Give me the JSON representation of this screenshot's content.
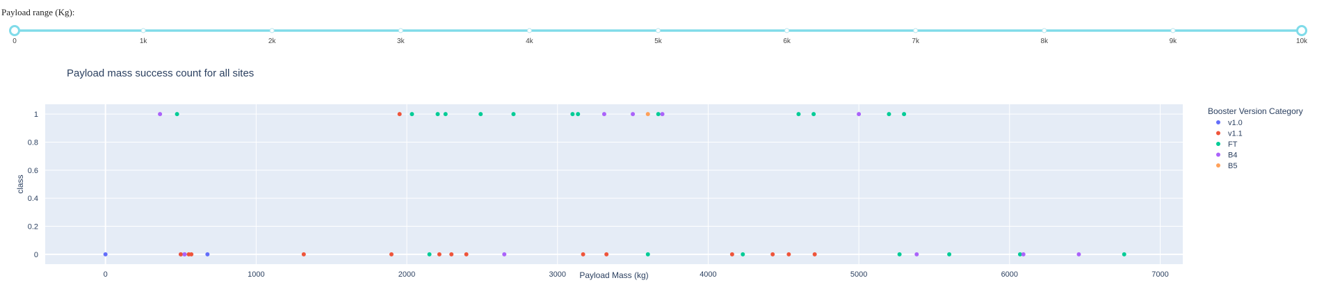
{
  "slider": {
    "label": "Payload range (Kg):",
    "marks": [
      "0",
      "1k",
      "2k",
      "3k",
      "4k",
      "5k",
      "6k",
      "7k",
      "8k",
      "9k",
      "10k"
    ],
    "min": 0,
    "max": 10000,
    "range": [
      0,
      10000
    ],
    "track_color": "#7fdbe9"
  },
  "chart_data": {
    "type": "scatter",
    "title": "Payload mass success count for all sites",
    "xlabel": "Payload Mass (kg)",
    "ylabel": "class",
    "xlim": [
      -400,
      7150
    ],
    "ylim": [
      -0.07,
      1.07
    ],
    "xticks": [
      0,
      1000,
      2000,
      3000,
      4000,
      5000,
      6000,
      7000
    ],
    "yticks": [
      0,
      0.2,
      0.4,
      0.6,
      0.8,
      1
    ],
    "legend_title": "Booster Version Category",
    "legend_position": "right",
    "grid": true,
    "series": [
      {
        "name": "v1.0",
        "color": "#636efa",
        "points": [
          [
            0,
            0
          ],
          [
            500,
            0
          ],
          [
            525,
            0
          ],
          [
            677,
            0
          ]
        ]
      },
      {
        "name": "v1.1",
        "color": "#ef553b",
        "points": [
          [
            500,
            0
          ],
          [
            553,
            0
          ],
          [
            570,
            0
          ],
          [
            1316,
            0
          ],
          [
            1898,
            0
          ],
          [
            1952,
            1
          ],
          [
            2216,
            0
          ],
          [
            2296,
            0
          ],
          [
            2395,
            0
          ],
          [
            3170,
            0
          ],
          [
            3325,
            0
          ],
          [
            4159,
            0
          ],
          [
            4428,
            0
          ],
          [
            4535,
            0
          ],
          [
            4707,
            0
          ]
        ]
      },
      {
        "name": "FT",
        "color": "#00cc96",
        "points": [
          [
            475,
            1
          ],
          [
            2034,
            1
          ],
          [
            2150,
            0
          ],
          [
            2205,
            1
          ],
          [
            2257,
            1
          ],
          [
            2490,
            1
          ],
          [
            2708,
            1
          ],
          [
            3100,
            1
          ],
          [
            3136,
            1
          ],
          [
            3600,
            0
          ],
          [
            3669,
            1
          ],
          [
            4230,
            0
          ],
          [
            4600,
            1
          ],
          [
            4700,
            1
          ],
          [
            5200,
            1
          ],
          [
            5270,
            0
          ],
          [
            5300,
            1
          ],
          [
            5600,
            0
          ],
          [
            6070,
            0
          ],
          [
            6761,
            0
          ]
        ]
      },
      {
        "name": "B4",
        "color": "#ab63fa",
        "points": [
          [
            362,
            1
          ],
          [
            525,
            0
          ],
          [
            2647,
            0
          ],
          [
            3310,
            1
          ],
          [
            3500,
            1
          ],
          [
            3696,
            1
          ],
          [
            5000,
            1
          ],
          [
            5384,
            0
          ],
          [
            6092,
            0
          ],
          [
            6460,
            0
          ]
        ]
      },
      {
        "name": "B5",
        "color": "#ffa15a",
        "points": [
          [
            3600,
            1
          ]
        ]
      }
    ]
  }
}
